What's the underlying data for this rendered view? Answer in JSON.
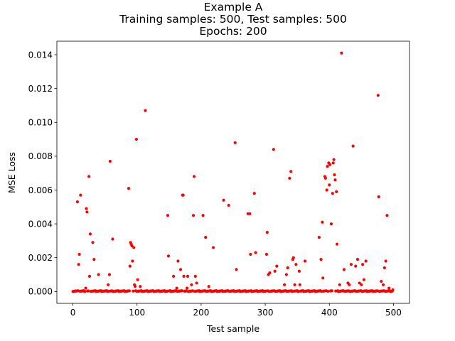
{
  "chart_data": {
    "type": "scatter",
    "title_lines": [
      "Example A",
      "Training samples: 500,   Test samples: 500",
      "Epochs: 200"
    ],
    "xlabel": "Test sample",
    "ylabel": "MSE Loss",
    "xlim": [
      -25,
      525
    ],
    "ylim": [
      -0.0007,
      0.0148
    ],
    "xticks": [
      0,
      100,
      200,
      300,
      400,
      500
    ],
    "yticks": [
      0.0,
      0.002,
      0.004,
      0.006,
      0.008,
      0.01,
      0.012,
      0.014
    ],
    "ytick_labels": [
      "0.000",
      "0.002",
      "0.004",
      "0.006",
      "0.008",
      "0.010",
      "0.012",
      "0.014"
    ],
    "grid": false,
    "marker_color": "#ff0000",
    "series": [
      {
        "x": [
          7,
          9,
          10,
          12,
          20,
          21,
          22,
          25,
          26,
          27,
          31,
          33,
          40,
          55,
          57,
          58,
          62,
          87,
          89,
          90,
          91,
          92,
          93,
          95,
          96,
          97,
          99,
          101,
          105,
          113,
          148,
          149,
          157,
          162,
          164,
          168,
          171,
          172,
          173,
          178,
          179,
          185,
          188,
          189,
          191,
          193,
          203,
          207,
          212,
          219,
          235,
          243,
          253,
          255,
          273,
          276,
          277,
          283,
          285,
          302,
          303,
          305,
          307,
          313,
          315,
          318,
          330,
          333,
          335,
          338,
          340,
          343,
          344,
          346,
          348,
          353,
          354,
          362,
          384,
          387,
          389,
          390,
          393,
          394,
          396,
          397,
          399,
          400,
          401,
          403,
          405,
          406,
          407,
          408,
          409,
          411,
          412,
          416,
          419,
          423,
          429,
          431,
          434,
          437,
          441,
          444,
          447,
          450,
          452,
          454,
          457,
          476,
          477,
          481,
          484,
          486,
          488,
          490,
          493,
          499
        ],
        "y": [
          0.0053,
          0.0016,
          0.0022,
          0.0057,
          0.0002,
          0.0049,
          0.0047,
          0.0068,
          0.0009,
          0.0034,
          0.0029,
          0.0019,
          0.001,
          0.0004,
          0.001,
          0.0077,
          0.0031,
          0.0061,
          0.0015,
          0.0029,
          0.0028,
          0.0027,
          0.0018,
          0.0026,
          0.0004,
          0.0003,
          0.009,
          0.0007,
          0.0003,
          0.0107,
          0.0045,
          0.0021,
          0.0009,
          0.0002,
          0.0018,
          0.0013,
          0.0057,
          0.0057,
          0.0009,
          0.0002,
          0.0009,
          0.0004,
          0.0045,
          0.0068,
          0.0009,
          0.0005,
          0.0045,
          0.0032,
          0.0003,
          0.0026,
          0.0054,
          0.0051,
          0.0088,
          0.0013,
          0.0046,
          0.0046,
          0.0022,
          0.0058,
          0.0023,
          0.0022,
          0.0035,
          0.001,
          0.0011,
          0.0084,
          0.0012,
          0.0015,
          0.0004,
          0.001,
          0.0014,
          0.0067,
          0.0071,
          0.0019,
          0.002,
          0.0004,
          0.0016,
          0.0012,
          0.0004,
          0.0018,
          0.0032,
          0.0019,
          0.0041,
          0.0008,
          0.0068,
          0.0067,
          0.006,
          0.0074,
          0.0076,
          0.0063,
          0.0075,
          0.004,
          0.0058,
          0.0076,
          0.0078,
          0.0069,
          0.0066,
          0.0059,
          0.0028,
          0.0004,
          0.0141,
          0.0013,
          0.0005,
          0.0004,
          0.0016,
          0.0086,
          0.0015,
          0.0019,
          0.0005,
          0.0004,
          0.0016,
          0.0007,
          0.0018,
          0.0116,
          0.0056,
          0.0006,
          0.0004,
          0.0014,
          0.0018,
          0.0045,
          0.0002,
          0.0001
        ]
      }
    ]
  }
}
